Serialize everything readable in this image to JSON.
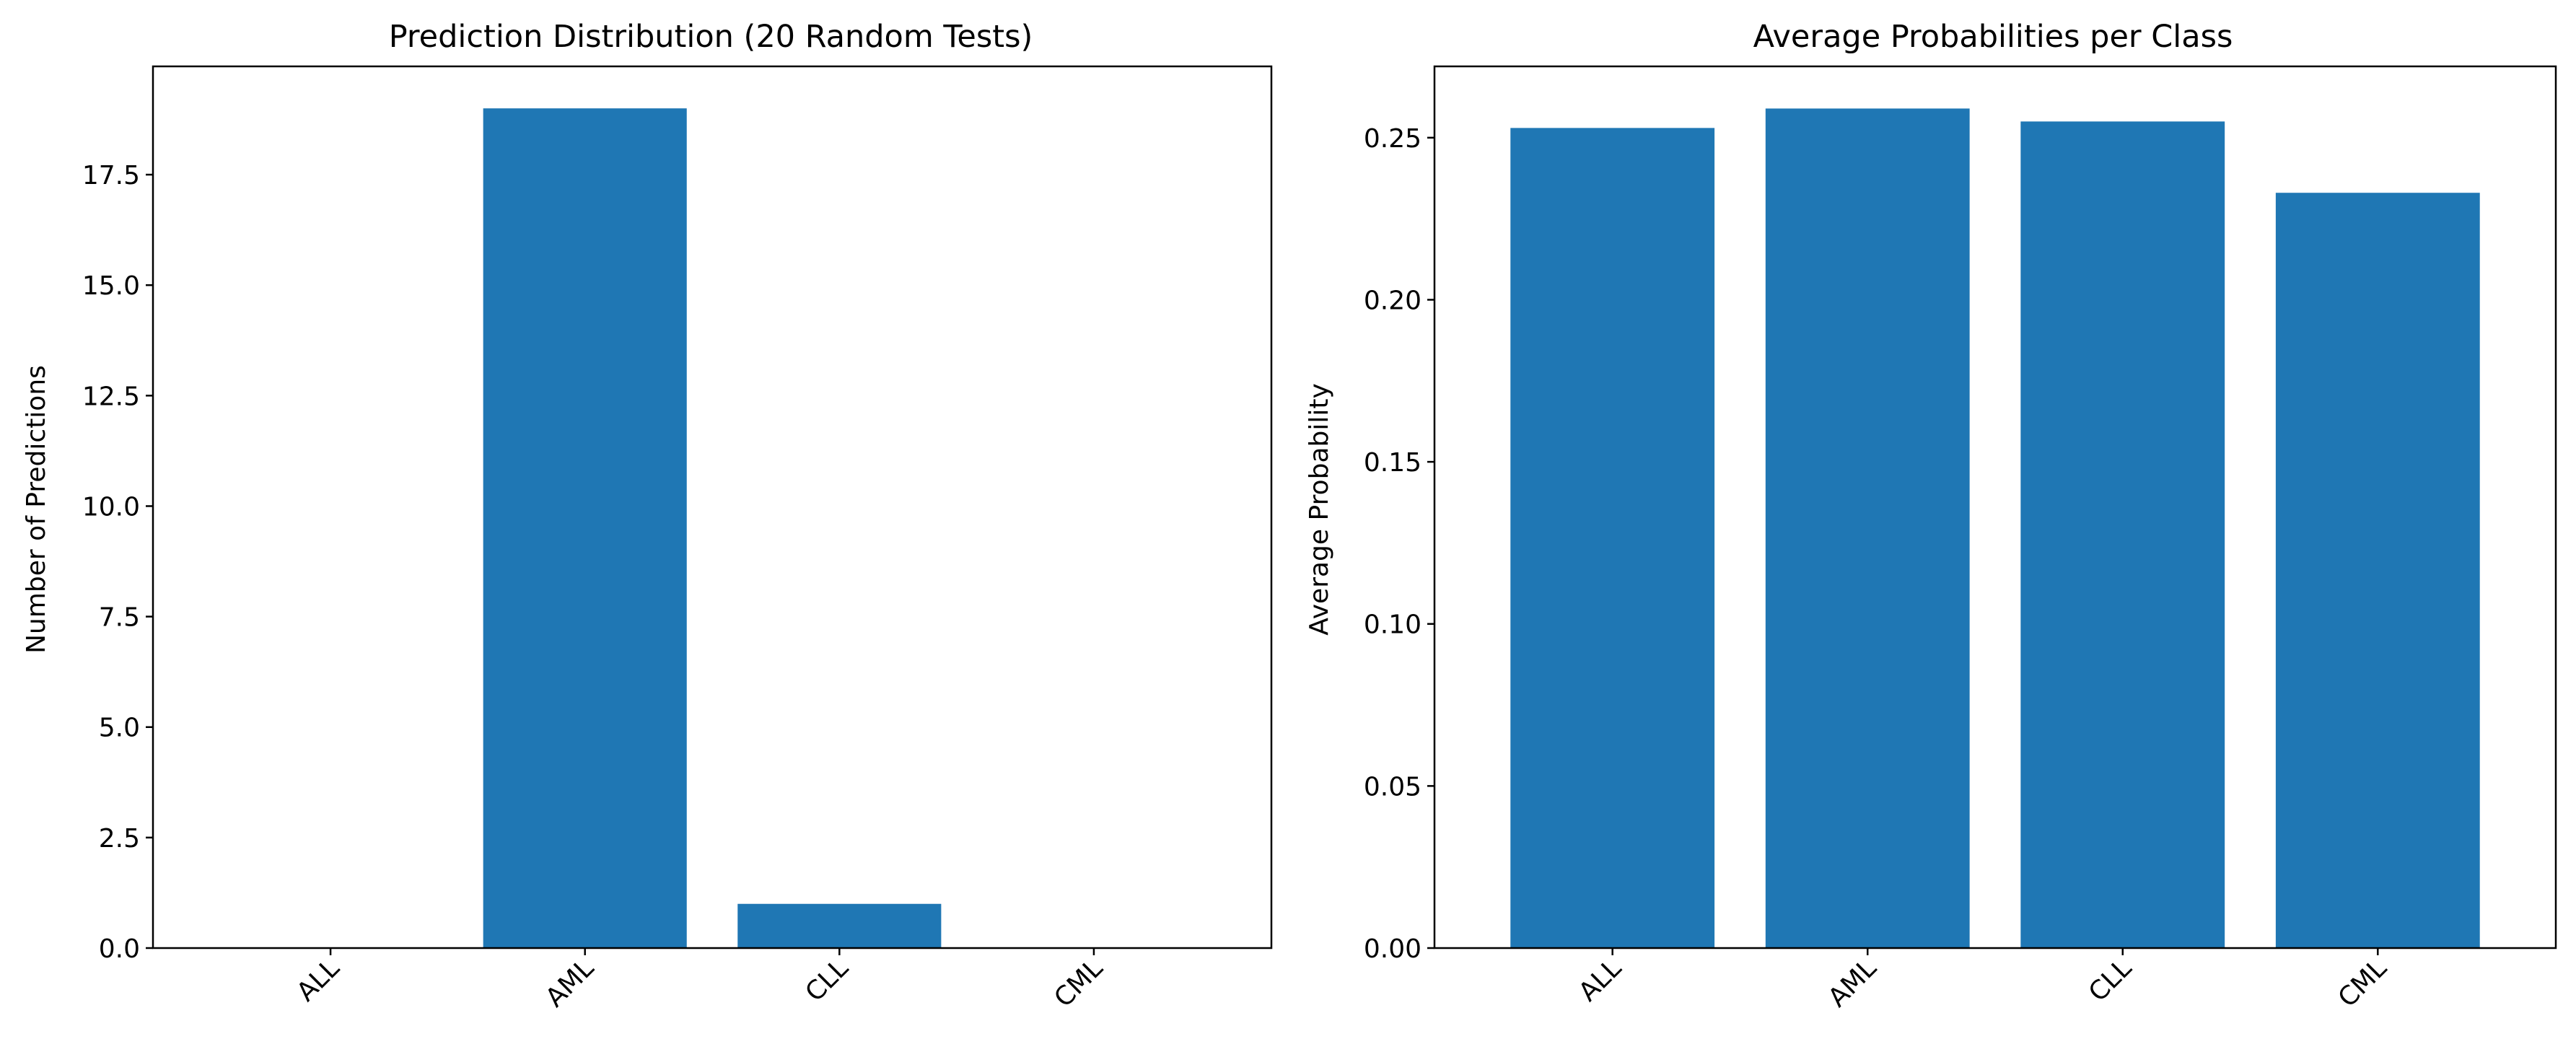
{
  "figure": {
    "bar_color": "#1f77b4"
  },
  "chart_data": [
    {
      "type": "bar",
      "title": "Prediction Distribution (20 Random Tests)",
      "xlabel": "",
      "ylabel": "Number of Predictions",
      "categories": [
        "ALL",
        "AML",
        "CLL",
        "CML"
      ],
      "values": [
        0,
        19,
        1,
        0
      ],
      "ylim": [
        0,
        19.95
      ],
      "yticks": [
        0.0,
        2.5,
        5.0,
        7.5,
        10.0,
        12.5,
        15.0,
        17.5
      ],
      "ytick_labels": [
        "0.0",
        "2.5",
        "5.0",
        "7.5",
        "10.0",
        "12.5",
        "15.0",
        "17.5"
      ],
      "xtick_rotation": 45,
      "grid": false,
      "legend": false
    },
    {
      "type": "bar",
      "title": "Average Probabilities per Class",
      "xlabel": "",
      "ylabel": "Average Probability",
      "categories": [
        "ALL",
        "AML",
        "CLL",
        "CML"
      ],
      "values": [
        0.253,
        0.259,
        0.255,
        0.233
      ],
      "ylim": [
        0,
        0.272
      ],
      "yticks": [
        0.0,
        0.05,
        0.1,
        0.15,
        0.2,
        0.25
      ],
      "ytick_labels": [
        "0.00",
        "0.05",
        "0.10",
        "0.15",
        "0.20",
        "0.25"
      ],
      "xtick_rotation": 45,
      "grid": false,
      "legend": false
    }
  ]
}
